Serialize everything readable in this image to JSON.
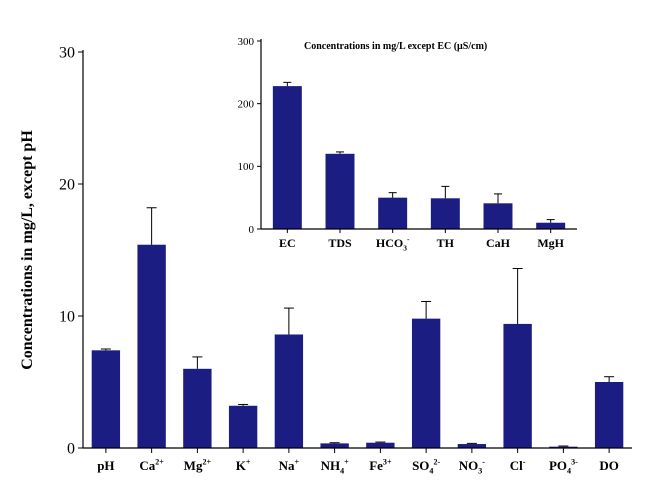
{
  "colors": {
    "bar": "#1c1d83",
    "axis": "#000000",
    "background": "#ffffff"
  },
  "chart_data": [
    {
      "type": "bar",
      "title": "",
      "xlabel": "",
      "ylabel": "Concentrations in mg/L, except pH",
      "ylim": [
        0,
        30
      ],
      "yticks": [
        "0",
        "10",
        "20",
        "30"
      ],
      "grid": false,
      "legend": "none",
      "categories": [
        {
          "base": "pH",
          "sup": "",
          "sub": ""
        },
        {
          "base": "Ca",
          "sup": "2+",
          "sub": ""
        },
        {
          "base": "Mg",
          "sup": "2+",
          "sub": ""
        },
        {
          "base": "K",
          "sup": "+",
          "sub": ""
        },
        {
          "base": "Na",
          "sup": "+",
          "sub": ""
        },
        {
          "base": "NH",
          "sup": "+",
          "sub": "4"
        },
        {
          "base": "Fe",
          "sup": "3+",
          "sub": ""
        },
        {
          "base": "SO",
          "sup": "2-",
          "sub": "4"
        },
        {
          "base": "NO",
          "sup": "-",
          "sub": "3"
        },
        {
          "base": "Cl",
          "sup": "-",
          "sub": ""
        },
        {
          "base": "PO",
          "sup": "3-",
          "sub": "4"
        },
        {
          "base": "DO",
          "sup": "",
          "sub": ""
        }
      ],
      "values": [
        7.4,
        15.4,
        6.0,
        3.2,
        8.6,
        0.35,
        0.4,
        9.8,
        0.3,
        9.4,
        0.1,
        5.0
      ],
      "errors": [
        0.1,
        2.8,
        0.9,
        0.1,
        2.0,
        0.05,
        0.05,
        1.3,
        0.05,
        4.2,
        0.05,
        0.4
      ]
    },
    {
      "type": "bar",
      "title": "Concentrations in mg/L except  EC (µS/cm)",
      "xlabel": "",
      "ylabel": "",
      "ylim": [
        0,
        300
      ],
      "yticks": [
        "0",
        "100",
        "200",
        "300"
      ],
      "grid": false,
      "legend": "none",
      "categories": [
        {
          "base": "EC",
          "sup": "",
          "sub": ""
        },
        {
          "base": "TDS",
          "sup": "",
          "sub": ""
        },
        {
          "base": "HCO",
          "sup": "-",
          "sub": "3"
        },
        {
          "base": "TH",
          "sup": "",
          "sub": ""
        },
        {
          "base": "CaH",
          "sup": "",
          "sub": ""
        },
        {
          "base": "MgH",
          "sup": "",
          "sub": ""
        }
      ],
      "values": [
        228,
        120,
        50,
        49,
        41,
        10
      ],
      "errors": [
        6,
        3,
        8,
        19,
        15,
        5
      ]
    }
  ]
}
